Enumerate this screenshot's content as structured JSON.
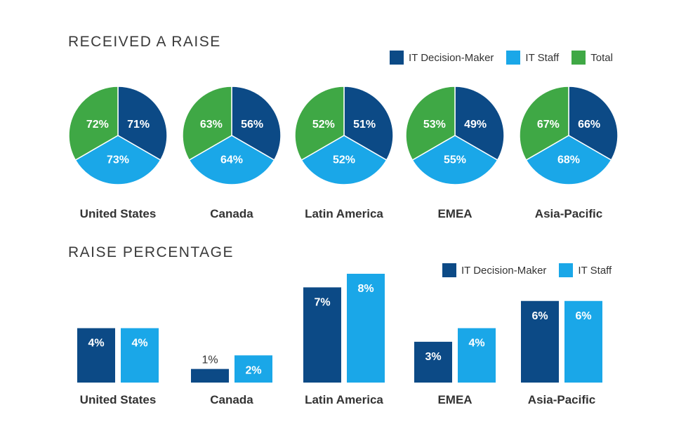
{
  "colors": {
    "decision_maker": "#0c4a86",
    "staff": "#1aa7e8",
    "total": "#3fa845",
    "label_dark": "#333333"
  },
  "pies": {
    "title": "RECEIVED A RAISE",
    "legend": [
      "IT Decision-Maker",
      "IT Staff",
      "Total"
    ]
  },
  "bars": {
    "title": "RAISE PERCENTAGE",
    "legend": [
      "IT Decision-Maker",
      "IT Staff"
    ]
  },
  "chart_data": [
    {
      "type": "pie",
      "title": "RECEIVED A RAISE",
      "legend": [
        "IT Decision-Maker",
        "IT Staff",
        "Total"
      ],
      "legend_position": "top-right",
      "categories": [
        "United States",
        "Canada",
        "Latin America",
        "EMEA",
        "Asia-Pacific"
      ],
      "series": [
        {
          "name": "IT Decision-Maker",
          "values": [
            71,
            56,
            51,
            49,
            66
          ],
          "labels": [
            "71%",
            "56%",
            "51%",
            "49%",
            "66%"
          ]
        },
        {
          "name": "IT Staff",
          "values": [
            73,
            64,
            52,
            55,
            68
          ],
          "labels": [
            "73%",
            "64%",
            "52%",
            "55%",
            "68%"
          ]
        },
        {
          "name": "Total",
          "values": [
            72,
            63,
            52,
            53,
            67
          ],
          "labels": [
            "72%",
            "63%",
            "52%",
            "53%",
            "67%"
          ]
        }
      ]
    },
    {
      "type": "bar",
      "title": "RAISE PERCENTAGE",
      "legend": [
        "IT Decision-Maker",
        "IT Staff"
      ],
      "legend_position": "top-right",
      "categories": [
        "United States",
        "Canada",
        "Latin America",
        "EMEA",
        "Asia-Pacific"
      ],
      "series": [
        {
          "name": "IT Decision-Maker",
          "values": [
            4,
            1,
            7,
            3,
            6
          ],
          "labels": [
            "4%",
            "1%",
            "7%",
            "3%",
            "6%"
          ]
        },
        {
          "name": "IT Staff",
          "values": [
            4,
            2,
            8,
            4,
            6
          ],
          "labels": [
            "4%",
            "2%",
            "8%",
            "4%",
            "6%"
          ]
        }
      ],
      "ylim": [
        0,
        8
      ],
      "grid": false
    }
  ]
}
